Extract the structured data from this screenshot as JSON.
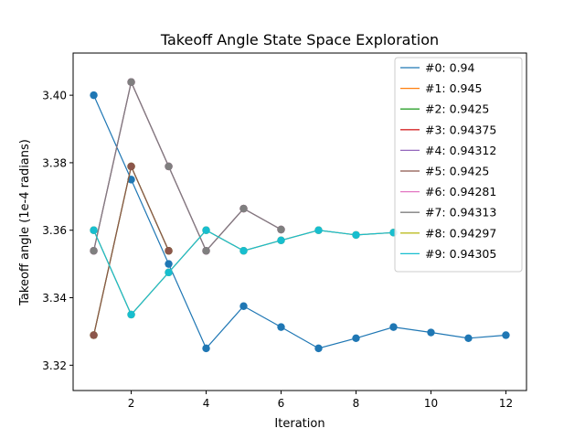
{
  "chart_data": {
    "type": "line",
    "title": "Takeoff Angle State Space Exploration",
    "xlabel": "Iteration",
    "ylabel": "Takeoff angle (1e-4 radians)",
    "xlim": [
      0.45,
      12.55
    ],
    "ylim": [
      3.3125,
      3.4125
    ],
    "x_ticks": [
      2,
      4,
      6,
      8,
      10,
      12
    ],
    "y_ticks": [
      3.32,
      3.34,
      3.36,
      3.38,
      3.4
    ],
    "grid": false,
    "legend_position": "top-right",
    "series": [
      {
        "name": "#0: 0.94",
        "color": "#1f77b4",
        "x": [
          1,
          2,
          3,
          4,
          5,
          6,
          7,
          8,
          9,
          10,
          11,
          12
        ],
        "y": [
          3.4,
          3.375,
          3.35,
          3.325,
          3.3375,
          3.3313,
          3.325,
          3.328,
          3.3313,
          3.3297,
          3.328,
          3.3289
        ]
      },
      {
        "name": "#1: 0.945",
        "color": "#ff7f0e",
        "x": [
          1,
          2,
          3
        ],
        "y": [
          3.3289,
          3.3789,
          3.3539
        ]
      },
      {
        "name": "#2: 0.9425",
        "color": "#2ca02c",
        "x": [
          1,
          2,
          3
        ],
        "y": [
          3.3289,
          3.3789,
          3.3539
        ]
      },
      {
        "name": "#3: 0.94375",
        "color": "#d62728",
        "x": [
          1,
          2,
          3,
          4,
          5,
          6
        ],
        "y": [
          3.3539,
          3.4039,
          3.3789,
          3.3539,
          3.3664,
          3.3602
        ]
      },
      {
        "name": "#4: 0.94312",
        "color": "#9467bd",
        "x": [
          1,
          2,
          3,
          4,
          5,
          6
        ],
        "y": [
          3.3539,
          3.4039,
          3.3789,
          3.3539,
          3.3664,
          3.3602
        ]
      },
      {
        "name": "#5: 0.9425",
        "color": "#8c564b",
        "x": [
          1,
          2,
          3
        ],
        "y": [
          3.3289,
          3.3789,
          3.3539
        ]
      },
      {
        "name": "#6: 0.94281",
        "color": "#e377c2",
        "x": [
          1,
          2,
          3,
          4,
          5,
          6,
          7,
          8,
          9
        ],
        "y": [
          3.36,
          3.335,
          3.3475,
          3.36,
          3.3539,
          3.357,
          3.36,
          3.3586,
          3.3593
        ]
      },
      {
        "name": "#7: 0.94313",
        "color": "#7f7f7f",
        "x": [
          1,
          2,
          3,
          4,
          5,
          6
        ],
        "y": [
          3.3539,
          3.4039,
          3.3789,
          3.3539,
          3.3664,
          3.3602
        ]
      },
      {
        "name": "#8: 0.94297",
        "color": "#bcbd22",
        "x": [
          1,
          2,
          3,
          4,
          5,
          6,
          7,
          8,
          9
        ],
        "y": [
          3.36,
          3.335,
          3.3475,
          3.36,
          3.3539,
          3.357,
          3.36,
          3.3586,
          3.3593
        ]
      },
      {
        "name": "#9: 0.94305",
        "color": "#17becf",
        "x": [
          1,
          2,
          3,
          4,
          5,
          6,
          7,
          8,
          9
        ],
        "y": [
          3.36,
          3.335,
          3.3475,
          3.36,
          3.3539,
          3.357,
          3.36,
          3.3586,
          3.3593
        ]
      }
    ]
  }
}
